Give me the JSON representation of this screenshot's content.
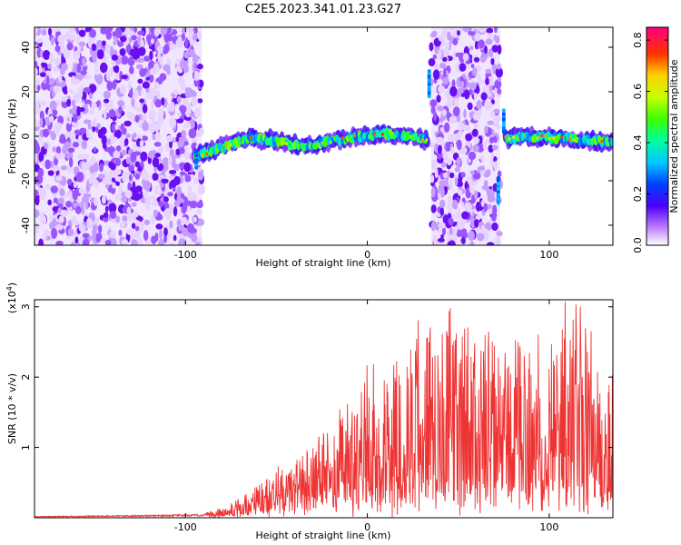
{
  "title": "C2E5.2023.341.01.23.G27",
  "chart_data": [
    {
      "type": "heatmap",
      "xlabel": "Height of straight line (km)",
      "ylabel": "Frequency (Hz)",
      "xlim": [
        -183,
        135
      ],
      "ylim": [
        -49,
        49
      ],
      "xticks": [
        -100,
        0,
        100
      ],
      "yticks": [
        -40,
        -20,
        0,
        20,
        40
      ],
      "colorbar": {
        "label": "Normalized spectral amplitude",
        "range": [
          0,
          0.85
        ],
        "ticks": [
          0.0,
          0.2,
          0.4,
          0.6,
          0.8
        ]
      },
      "noise_regions": [
        [
          -183,
          -91
        ],
        [
          35,
          73
        ]
      ],
      "signal_track": [
        {
          "x": -95,
          "y": -9
        },
        {
          "x": -80,
          "y": -5
        },
        {
          "x": -65,
          "y": -1
        },
        {
          "x": -50,
          "y": -2
        },
        {
          "x": -35,
          "y": -5
        },
        {
          "x": -20,
          "y": -2
        },
        {
          "x": -5,
          "y": 0
        },
        {
          "x": 10,
          "y": 1
        },
        {
          "x": 25,
          "y": 0
        },
        {
          "x": 32,
          "y": -2
        },
        {
          "x": 76,
          "y": -1
        },
        {
          "x": 90,
          "y": 0
        },
        {
          "x": 110,
          "y": -1
        },
        {
          "x": 135,
          "y": -3
        }
      ]
    },
    {
      "type": "line",
      "xlabel": "Height of straight line (km)",
      "ylabel": "SNR (10 * v/v)",
      "yscale_label": "(x10",
      "yscale_exponent": "4",
      "yscale_suffix": ")",
      "xlim": [
        -183,
        135
      ],
      "ylim": [
        0,
        3.1
      ],
      "xticks": [
        -100,
        0,
        100
      ],
      "yticks": [
        1,
        2,
        3
      ],
      "color": "#ee3333",
      "envelope": [
        {
          "x": -183,
          "base": 0.01,
          "peak": 0.02
        },
        {
          "x": -90,
          "base": 0.02,
          "peak": 0.05
        },
        {
          "x": -80,
          "base": 0.03,
          "peak": 0.15
        },
        {
          "x": -70,
          "base": 0.05,
          "peak": 0.3
        },
        {
          "x": -55,
          "base": 0.1,
          "peak": 0.6
        },
        {
          "x": -45,
          "base": 0.2,
          "peak": 0.8
        },
        {
          "x": -30,
          "base": 0.3,
          "peak": 1.0
        },
        {
          "x": -10,
          "base": 0.4,
          "peak": 1.6
        },
        {
          "x": 0,
          "base": 0.5,
          "peak": 2.0
        },
        {
          "x": 20,
          "base": 0.5,
          "peak": 2.4
        },
        {
          "x": 35,
          "base": 0.5,
          "peak": 3.1
        },
        {
          "x": 60,
          "base": 0.5,
          "peak": 2.6
        },
        {
          "x": 80,
          "base": 0.5,
          "peak": 2.4
        },
        {
          "x": 100,
          "base": 0.5,
          "peak": 2.7
        },
        {
          "x": 118,
          "base": 0.5,
          "peak": 3.1
        },
        {
          "x": 135,
          "base": 0.5,
          "peak": 2.2
        }
      ]
    }
  ]
}
